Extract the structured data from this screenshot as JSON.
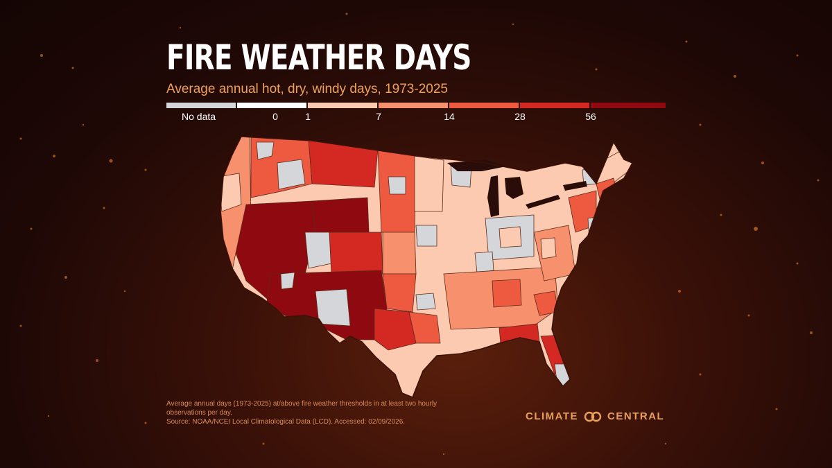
{
  "title": "FIRE WEATHER DAYS",
  "subtitle": "Average annual hot, dry, windy days, 1973-2025",
  "legend": {
    "nodata_label": "No data",
    "ticks": [
      "0",
      "1",
      "7",
      "14",
      "28",
      "56"
    ],
    "colors": {
      "nodata": "#d4d6da",
      "zero": "#ffffff",
      "b1_7": "#fbcab1",
      "b7_14": "#f7906d",
      "b14_28": "#ee5a40",
      "b28_56": "#d42822",
      "b56_plus": "#8e0910"
    }
  },
  "footnote": {
    "line1": "Average annual days (1973-2025) at/above fire weather thresholds in at least two hourly",
    "line2": "observations per day.",
    "source": "Source: NOAA/NCEI Local Climatological Data (LCD). Accessed: 02/09/2026."
  },
  "brand": {
    "left": "CLIMATE",
    "right": "CENTRAL",
    "icon": "interlocking-rings-icon",
    "color": "#e8a15c"
  }
}
